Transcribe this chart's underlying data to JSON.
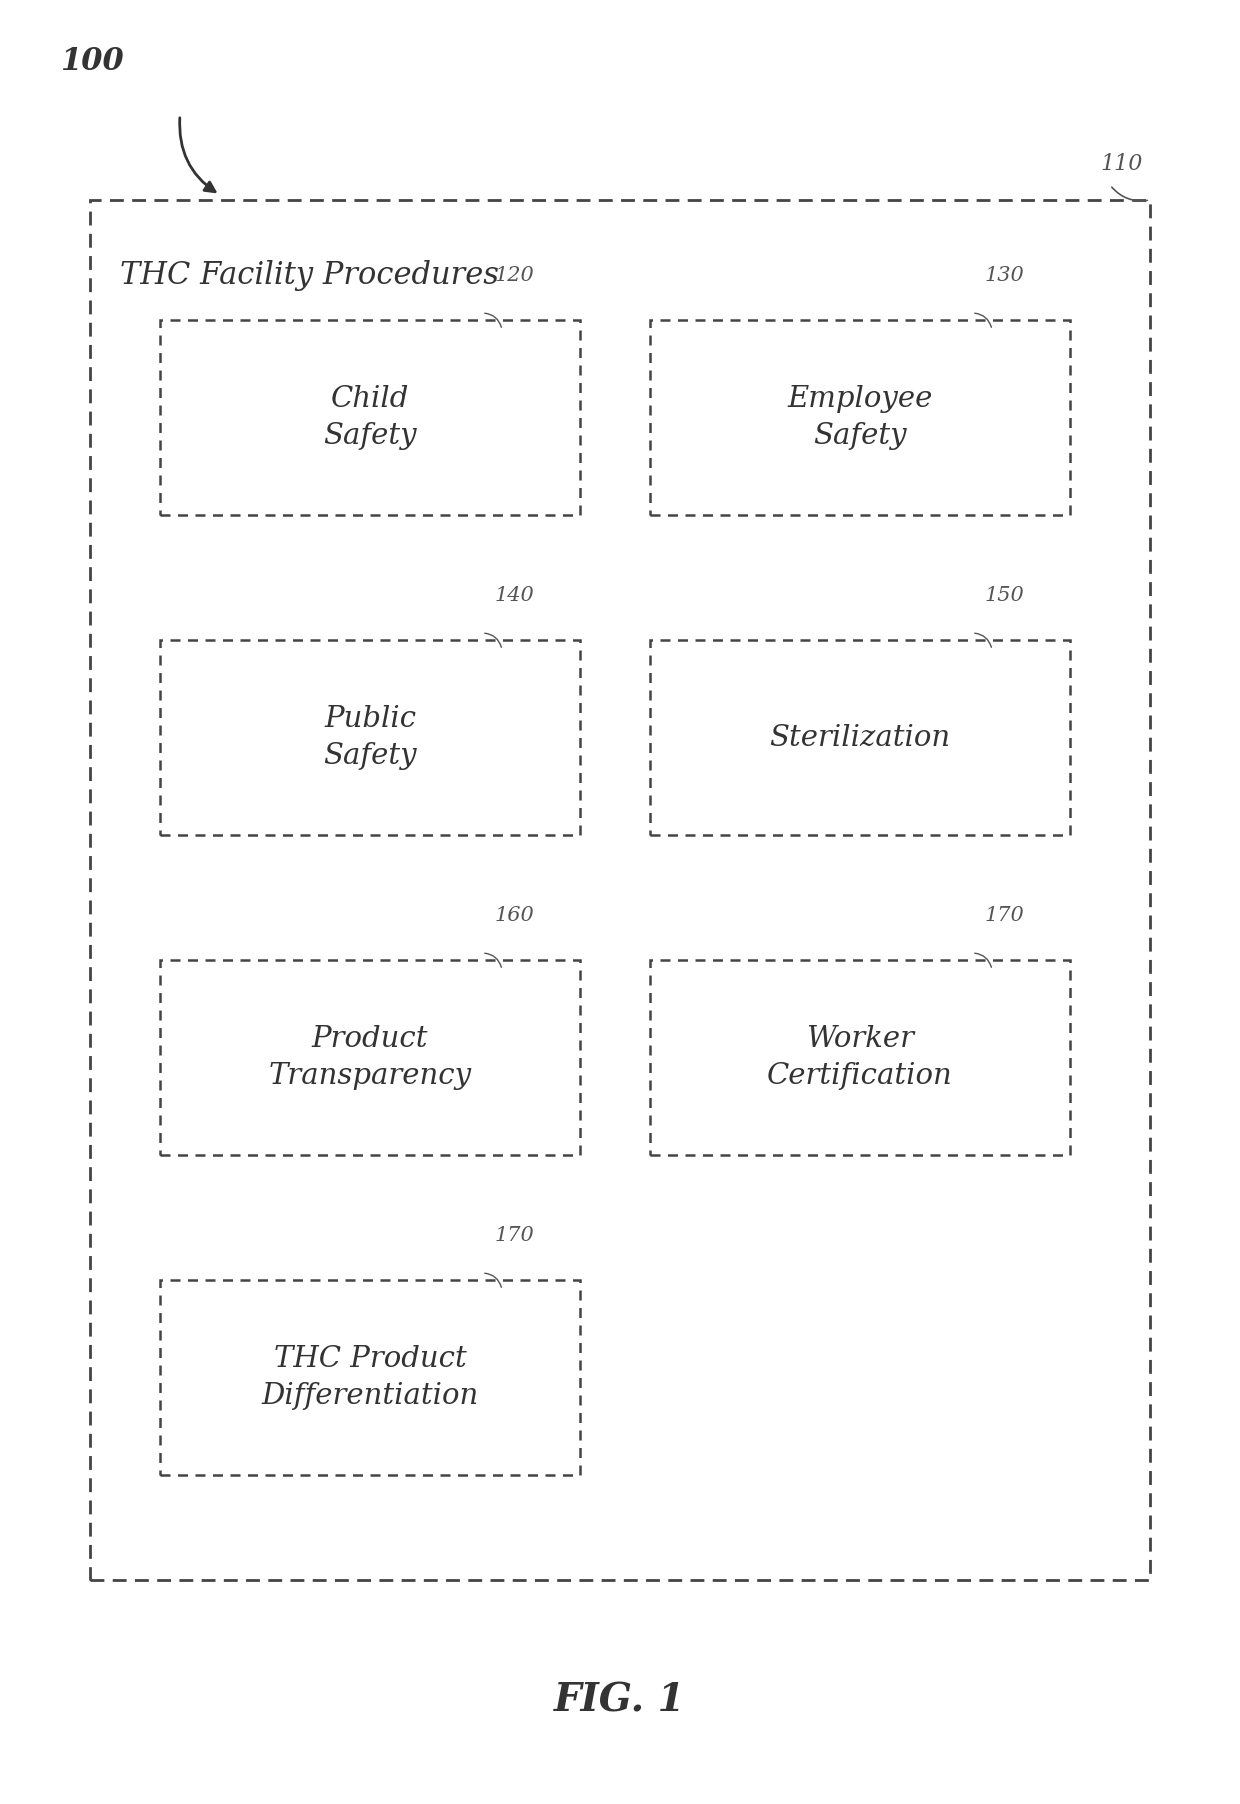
{
  "title": "FIG. 1",
  "outer_box_label": "THC Facility Procedures",
  "outer_ref": "110",
  "diagram_ref": "100",
  "boxes": [
    {
      "label": "Child\nSafety",
      "ref": "120",
      "col": 0,
      "row": 0
    },
    {
      "label": "Employee\nSafety",
      "ref": "130",
      "col": 1,
      "row": 0
    },
    {
      "label": "Public\nSafety",
      "ref": "140",
      "col": 0,
      "row": 1
    },
    {
      "label": "Sterilization",
      "ref": "150",
      "col": 1,
      "row": 1
    },
    {
      "label": "Product\nTransparency",
      "ref": "160",
      "col": 0,
      "row": 2
    },
    {
      "label": "Worker\nCertification",
      "ref": "170",
      "col": 1,
      "row": 2
    },
    {
      "label": "THC Product\nDifferentiation",
      "ref": "170",
      "col": 0,
      "row": 3,
      "wide": true
    }
  ],
  "bg_color": "#ffffff",
  "box_color": "#ffffff",
  "border_color": "#333333",
  "text_color": "#333333",
  "ref_color": "#555555"
}
